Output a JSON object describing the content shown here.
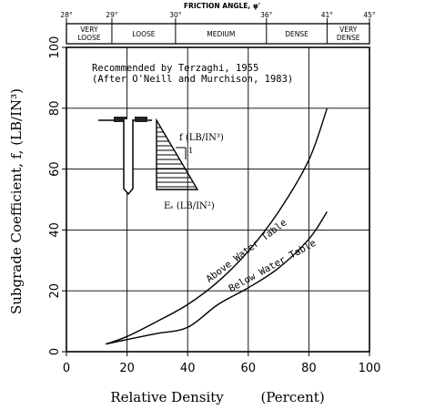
{
  "chart_data": {
    "type": "line",
    "xlabel": "Relative Density",
    "xlabel_unit": "(Percent)",
    "ylabel": "Subgrade Coefficient, f, (LB/IN³)",
    "xlim": [
      0,
      100
    ],
    "ylim": [
      0,
      100
    ],
    "x_ticks": [
      "0",
      "20",
      "40",
      "60",
      "80",
      "100"
    ],
    "y_ticks": [
      "0",
      "20",
      "40",
      "60",
      "80",
      "100"
    ],
    "grid": true,
    "annotation_lines": [
      "Recommended by Terzaghi, 1955",
      "(After O'Neill and Murchison, 1983)"
    ],
    "top_axis": {
      "title": "FRICTION ANGLE, φ'",
      "angle_ticks": [
        {
          "label": "28°",
          "x": 0
        },
        {
          "label": "29°",
          "x": 15
        },
        {
          "label": "30°",
          "x": 36
        },
        {
          "label": "36°",
          "x": 66
        },
        {
          "label": "41°",
          "x": 86
        },
        {
          "label": "45°",
          "x": 100
        }
      ],
      "density_classes": [
        {
          "label": [
            "VERY",
            "LOOSE"
          ],
          "from": 0,
          "to": 15
        },
        {
          "label": [
            "LOOSE"
          ],
          "from": 15,
          "to": 36
        },
        {
          "label": [
            "MEDIUM"
          ],
          "from": 36,
          "to": 66
        },
        {
          "label": [
            "DENSE"
          ],
          "from": 66,
          "to": 86
        },
        {
          "label": [
            "VERY",
            "DENSE"
          ],
          "from": 86,
          "to": 100
        }
      ]
    },
    "series": [
      {
        "name": "Above Water Table",
        "x": [
          13,
          20,
          30,
          40,
          50,
          60,
          70,
          80,
          86
        ],
        "y": [
          2.5,
          5,
          10,
          15.5,
          23,
          33,
          46,
          63,
          80
        ]
      },
      {
        "name": "Below Water Table",
        "x": [
          13,
          20,
          30,
          40,
          50,
          60,
          70,
          80,
          86
        ],
        "y": [
          2.5,
          4,
          6,
          8,
          15.5,
          21,
          27.5,
          37,
          46
        ]
      }
    ],
    "inset": {
      "f_label": "f (LB/IN³)",
      "slope_label": "1",
      "es_label": "Eₛ (LB/IN²)"
    }
  }
}
